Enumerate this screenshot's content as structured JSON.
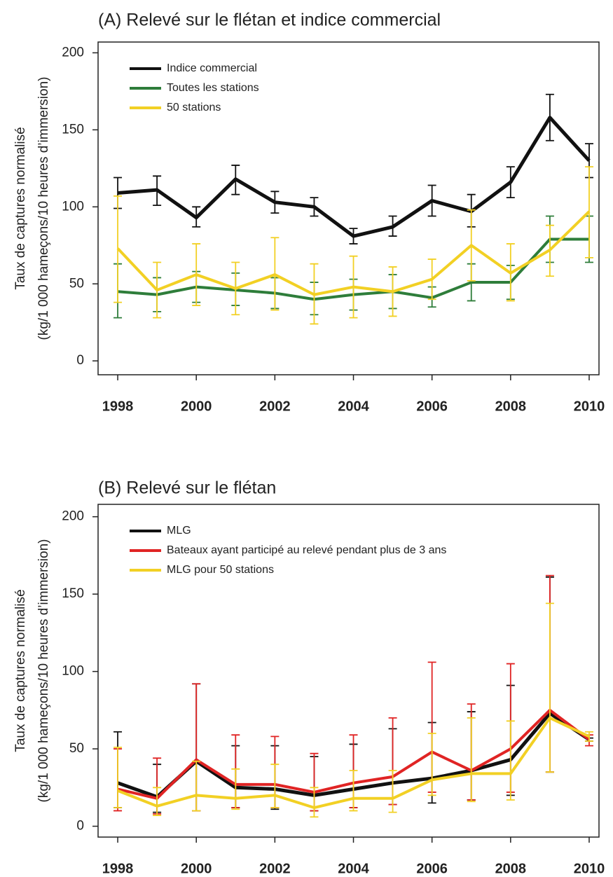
{
  "chart_data": [
    {
      "type": "line",
      "title": "(A) Relevé sur le flétan et indice commercial",
      "y_label": [
        "Taux de captures normalisé",
        "(kg/1 000 hameçons/10 heures d’immersion)"
      ],
      "x": [
        1998,
        1999,
        2000,
        2001,
        2002,
        2003,
        2004,
        2005,
        2006,
        2007,
        2008,
        2009,
        2010
      ],
      "xlim": [
        1997.5,
        2010.25
      ],
      "xticks": [
        1998,
        2000,
        2002,
        2004,
        2006,
        2008,
        2010
      ],
      "ylim": [
        -9,
        207
      ],
      "yticks": [
        0,
        50,
        100,
        150,
        200
      ],
      "legend": "upper left",
      "series": [
        {
          "name": "Indice commercial",
          "color": "#111111",
          "values": [
            109,
            111,
            93,
            118,
            103,
            100,
            81,
            87,
            104,
            97,
            116,
            158,
            130
          ],
          "low": [
            99,
            101,
            87,
            108,
            96,
            94,
            76,
            81,
            94,
            87,
            106,
            143,
            119
          ],
          "high": [
            119,
            120,
            100,
            127,
            110,
            106,
            86,
            94,
            114,
            108,
            126,
            173,
            141
          ]
        },
        {
          "name": "Toutes les stations",
          "color": "#2e7d3a",
          "values": [
            45,
            43,
            48,
            46,
            44,
            40,
            43,
            45,
            41,
            51,
            51,
            79,
            79
          ],
          "low": [
            28,
            32,
            38,
            36,
            34,
            30,
            33,
            34,
            35,
            39,
            40,
            64,
            64
          ],
          "high": [
            63,
            54,
            58,
            57,
            54,
            51,
            53,
            56,
            48,
            63,
            62,
            94,
            94
          ]
        },
        {
          "name": "50 stations",
          "color": "#f2d024",
          "values": [
            73,
            46,
            56,
            47,
            56,
            43,
            48,
            45,
            53,
            75,
            57,
            72,
            97
          ],
          "low": [
            38,
            28,
            36,
            30,
            33,
            24,
            28,
            29,
            40,
            52,
            39,
            55,
            67
          ],
          "high": [
            107,
            64,
            76,
            64,
            80,
            63,
            68,
            61,
            66,
            98,
            76,
            88,
            126
          ]
        }
      ]
    },
    {
      "type": "line",
      "title": "(B) Relevé sur le flétan",
      "y_label": [
        "Taux de captures normalisé",
        "(kg/1 000 hameçons/10 heures d’immersion)"
      ],
      "x": [
        1998,
        1999,
        2000,
        2001,
        2002,
        2003,
        2004,
        2005,
        2006,
        2007,
        2008,
        2009,
        2010
      ],
      "xlim": [
        1997.5,
        2010.25
      ],
      "xticks": [
        1998,
        2000,
        2002,
        2004,
        2006,
        2008,
        2010
      ],
      "ylim": [
        -7,
        208
      ],
      "yticks": [
        0,
        50,
        100,
        150,
        200
      ],
      "legend": "upper left",
      "series": [
        {
          "name": "MLG",
          "color": "#111111",
          "values": [
            28,
            19,
            42,
            25,
            24,
            20,
            24,
            28,
            31,
            36,
            43,
            73,
            56
          ],
          "low": [
            12,
            9,
            10,
            12,
            11,
            10,
            12,
            14,
            15,
            17,
            20,
            35,
            55
          ],
          "high": [
            61,
            40,
            92,
            52,
            52,
            45,
            53,
            63,
            67,
            74,
            91,
            161,
            57
          ]
        },
        {
          "name": "Bateaux ayant participé au relevé pendant plus de 3 ans",
          "color": "#e02424",
          "values": [
            24,
            18,
            43,
            27,
            27,
            22,
            28,
            32,
            48,
            36,
            50,
            75,
            56
          ],
          "low": [
            10,
            8,
            10,
            12,
            12,
            10,
            12,
            14,
            22,
            17,
            22,
            35,
            52
          ],
          "high": [
            50,
            44,
            92,
            59,
            58,
            47,
            59,
            70,
            106,
            79,
            105,
            162,
            59
          ]
        },
        {
          "name": "MLG pour 50 stations",
          "color": "#f2d024",
          "values": [
            23,
            13,
            20,
            18,
            20,
            12,
            18,
            18,
            30,
            34,
            34,
            70,
            58
          ],
          "low": [
            12,
            7,
            10,
            11,
            12,
            6,
            10,
            9,
            20,
            16,
            17,
            35,
            55
          ],
          "high": [
            51,
            25,
            42,
            37,
            40,
            25,
            36,
            36,
            60,
            70,
            68,
            144,
            61
          ]
        }
      ]
    }
  ]
}
